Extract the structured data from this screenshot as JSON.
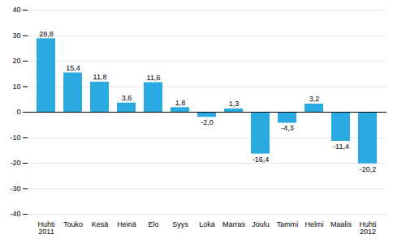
{
  "chart_data": {
    "type": "bar",
    "categories": [
      "Huhti\n2011",
      "Touko",
      "Kesä",
      "Heinä",
      "Elo",
      "Syys",
      "Loka",
      "Marras",
      "Joulu",
      "Tammi",
      "Helmi",
      "Maalis",
      "Huhti\n2012"
    ],
    "values": [
      28.8,
      15.4,
      11.8,
      3.6,
      11.6,
      1.8,
      -2.0,
      1.3,
      -16.4,
      -4.3,
      3.2,
      -11.4,
      -20.2
    ],
    "value_labels": [
      "28,8",
      "15,4",
      "11,8",
      "3,6",
      "11,6",
      "1,8",
      "-2,0",
      "1,3",
      "-16,4",
      "-4,3",
      "3,2",
      "-11,4",
      "-20,2"
    ],
    "color": "#29ABE2",
    "ylim": [
      -40,
      40
    ],
    "yticks": [
      -40,
      -30,
      -20,
      -10,
      0,
      10,
      20,
      30,
      40
    ],
    "grid": true,
    "data_labels": true
  }
}
